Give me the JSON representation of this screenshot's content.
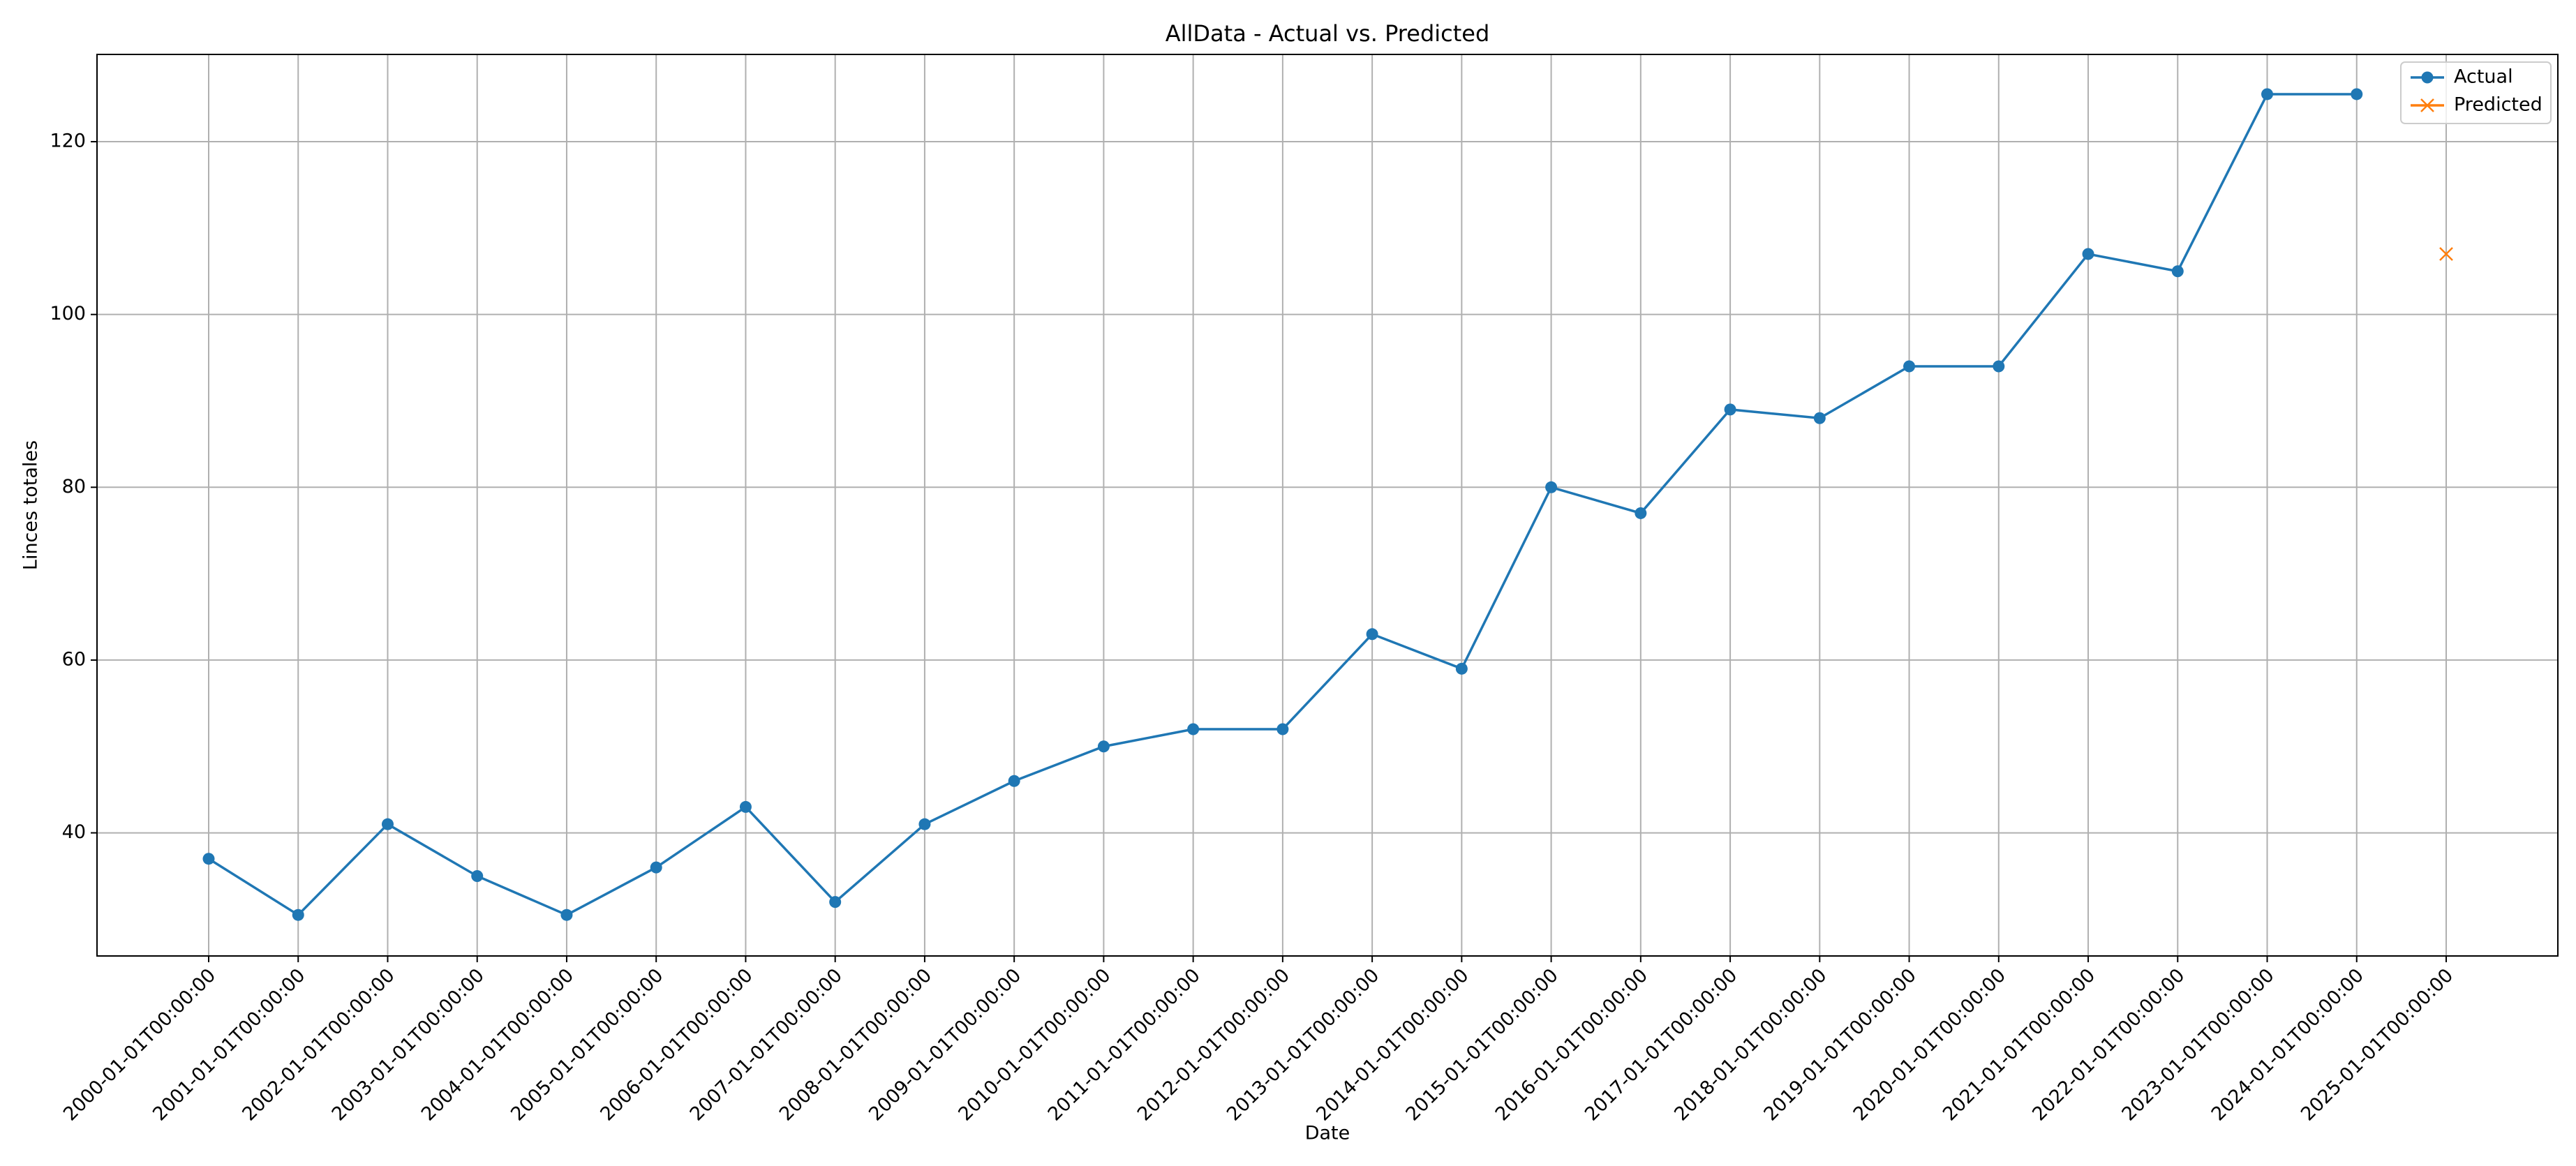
{
  "chart_data": {
    "type": "line",
    "title": "AllData - Actual vs. Predicted",
    "x_label": "Date",
    "y_label": "Linces totales",
    "categories": [
      "2000-01-01T00:00:00",
      "2001-01-01T00:00:00",
      "2002-01-01T00:00:00",
      "2003-01-01T00:00:00",
      "2004-01-01T00:00:00",
      "2005-01-01T00:00:00",
      "2006-01-01T00:00:00",
      "2007-01-01T00:00:00",
      "2008-01-01T00:00:00",
      "2009-01-01T00:00:00",
      "2010-01-01T00:00:00",
      "2011-01-01T00:00:00",
      "2012-01-01T00:00:00",
      "2013-01-01T00:00:00",
      "2014-01-01T00:00:00",
      "2015-01-01T00:00:00",
      "2016-01-01T00:00:00",
      "2017-01-01T00:00:00",
      "2018-01-01T00:00:00",
      "2019-01-01T00:00:00",
      "2020-01-01T00:00:00",
      "2021-01-01T00:00:00",
      "2022-01-01T00:00:00",
      "2023-01-01T00:00:00",
      "2024-01-01T00:00:00",
      "2025-01-01T00:00:00"
    ],
    "series": [
      {
        "name": "Actual",
        "color": "#1f77b4",
        "marker": "o",
        "values": [
          37,
          30.5,
          41,
          35,
          30.5,
          36,
          43,
          32,
          41,
          46,
          50,
          52,
          52,
          63,
          59,
          80,
          77,
          89,
          88,
          94,
          94,
          107,
          105,
          125.5,
          125.5,
          null
        ]
      },
      {
        "name": "Predicted",
        "color": "#ff7f0e",
        "marker": "x",
        "values": [
          null,
          null,
          null,
          null,
          null,
          null,
          null,
          null,
          null,
          null,
          null,
          null,
          null,
          null,
          null,
          null,
          null,
          null,
          null,
          null,
          null,
          null,
          null,
          null,
          null,
          107
        ]
      }
    ],
    "ylim": [
      25.75,
      130.1
    ],
    "yticks": [
      40,
      60,
      80,
      100,
      120
    ],
    "grid": true,
    "legend": "upper right"
  }
}
